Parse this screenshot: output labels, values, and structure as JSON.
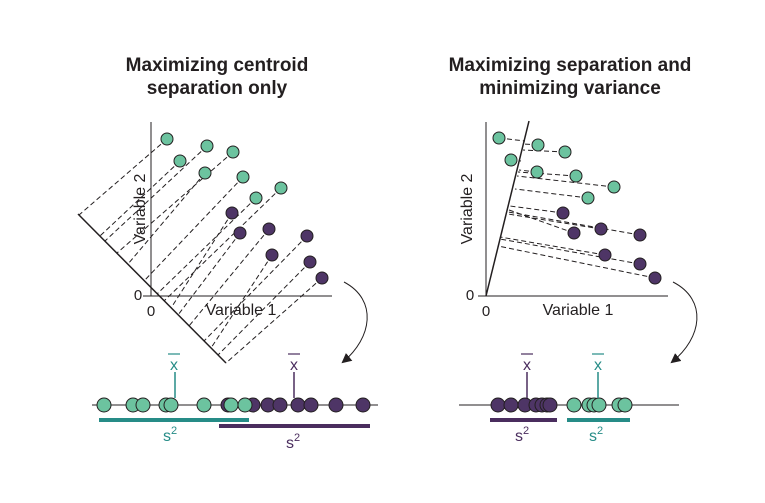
{
  "colors": {
    "green_fill": "#6cc39f",
    "purple_fill": "#4e3566",
    "teal_bar": "#268c87",
    "purple_bar": "#4a2d5e",
    "ink": "#231f20"
  },
  "left_panel": {
    "title_line1": "Maximizing centroid",
    "title_line2": "separation only",
    "x_axis_label": "Variable 1",
    "y_axis_label": "Variable 2",
    "origin_x_label": "0",
    "origin_y_label": "0",
    "green_mean_label": "x",
    "purple_mean_label": "x",
    "green_variance_label": "s",
    "green_variance_exp": "2",
    "purple_variance_label": "s",
    "purple_variance_exp": "2"
  },
  "right_panel": {
    "title_line1": "Maximizing separation and",
    "title_line2": "minimizing variance",
    "x_axis_label": "Variable 1",
    "y_axis_label": "Variable 2",
    "origin_x_label": "0",
    "origin_y_label": "0",
    "purple_mean_label": "x",
    "green_mean_label": "x",
    "purple_variance_label": "s",
    "purple_variance_exp": "2",
    "green_variance_label": "s",
    "green_variance_exp": "2"
  }
}
